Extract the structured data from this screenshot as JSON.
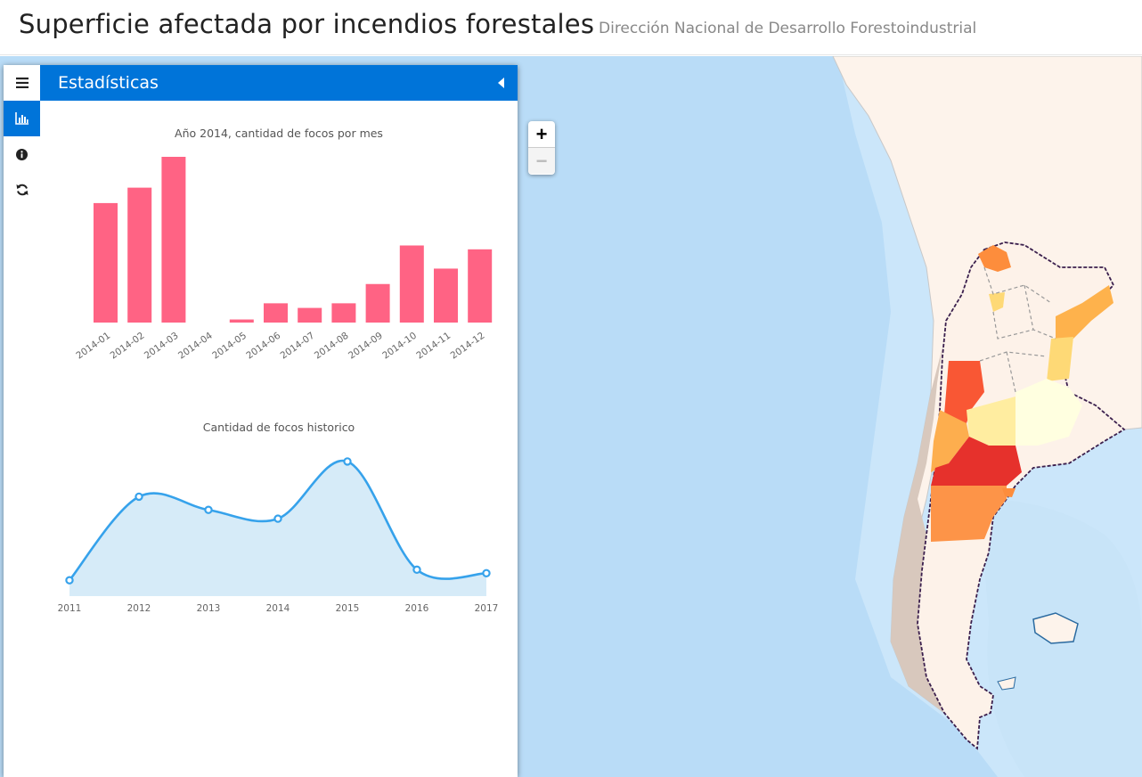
{
  "header": {
    "title": "Superficie afectada por incendios forestales",
    "subtitle": "Dirección Nacional de Desarrollo Forestoindustrial"
  },
  "sidebar": {
    "tabs": [
      {
        "icon": "menu-icon",
        "active": false
      },
      {
        "icon": "bar-chart-icon",
        "active": true
      },
      {
        "icon": "info-icon",
        "active": false
      },
      {
        "icon": "refresh-icon",
        "active": false
      }
    ],
    "pane_title": "Estadísticas",
    "pane_accent": "#0074d9"
  },
  "map": {
    "zoom_in_label": "+",
    "zoom_out_label": "−"
  },
  "chart_data": [
    {
      "type": "bar",
      "title": "Año 2014, cantidad de focos por mes",
      "categories": [
        "2014-01",
        "2014-02",
        "2014-03",
        "2014-04",
        "2014-05",
        "2014-06",
        "2014-07",
        "2014-08",
        "2014-09",
        "2014-10",
        "2014-11",
        "2014-12"
      ],
      "values": [
        310,
        350,
        430,
        0,
        8,
        50,
        38,
        50,
        100,
        200,
        140,
        190
      ],
      "color": "#ff6384"
    },
    {
      "type": "area",
      "title": "Cantidad de focos historico",
      "x": [
        "2011",
        "2012",
        "2013",
        "2014",
        "2015",
        "2016",
        "2017"
      ],
      "values": [
        15,
        110,
        95,
        85,
        150,
        27,
        23
      ],
      "color": "#36a2eb",
      "fill": "#d6ebf8"
    }
  ]
}
